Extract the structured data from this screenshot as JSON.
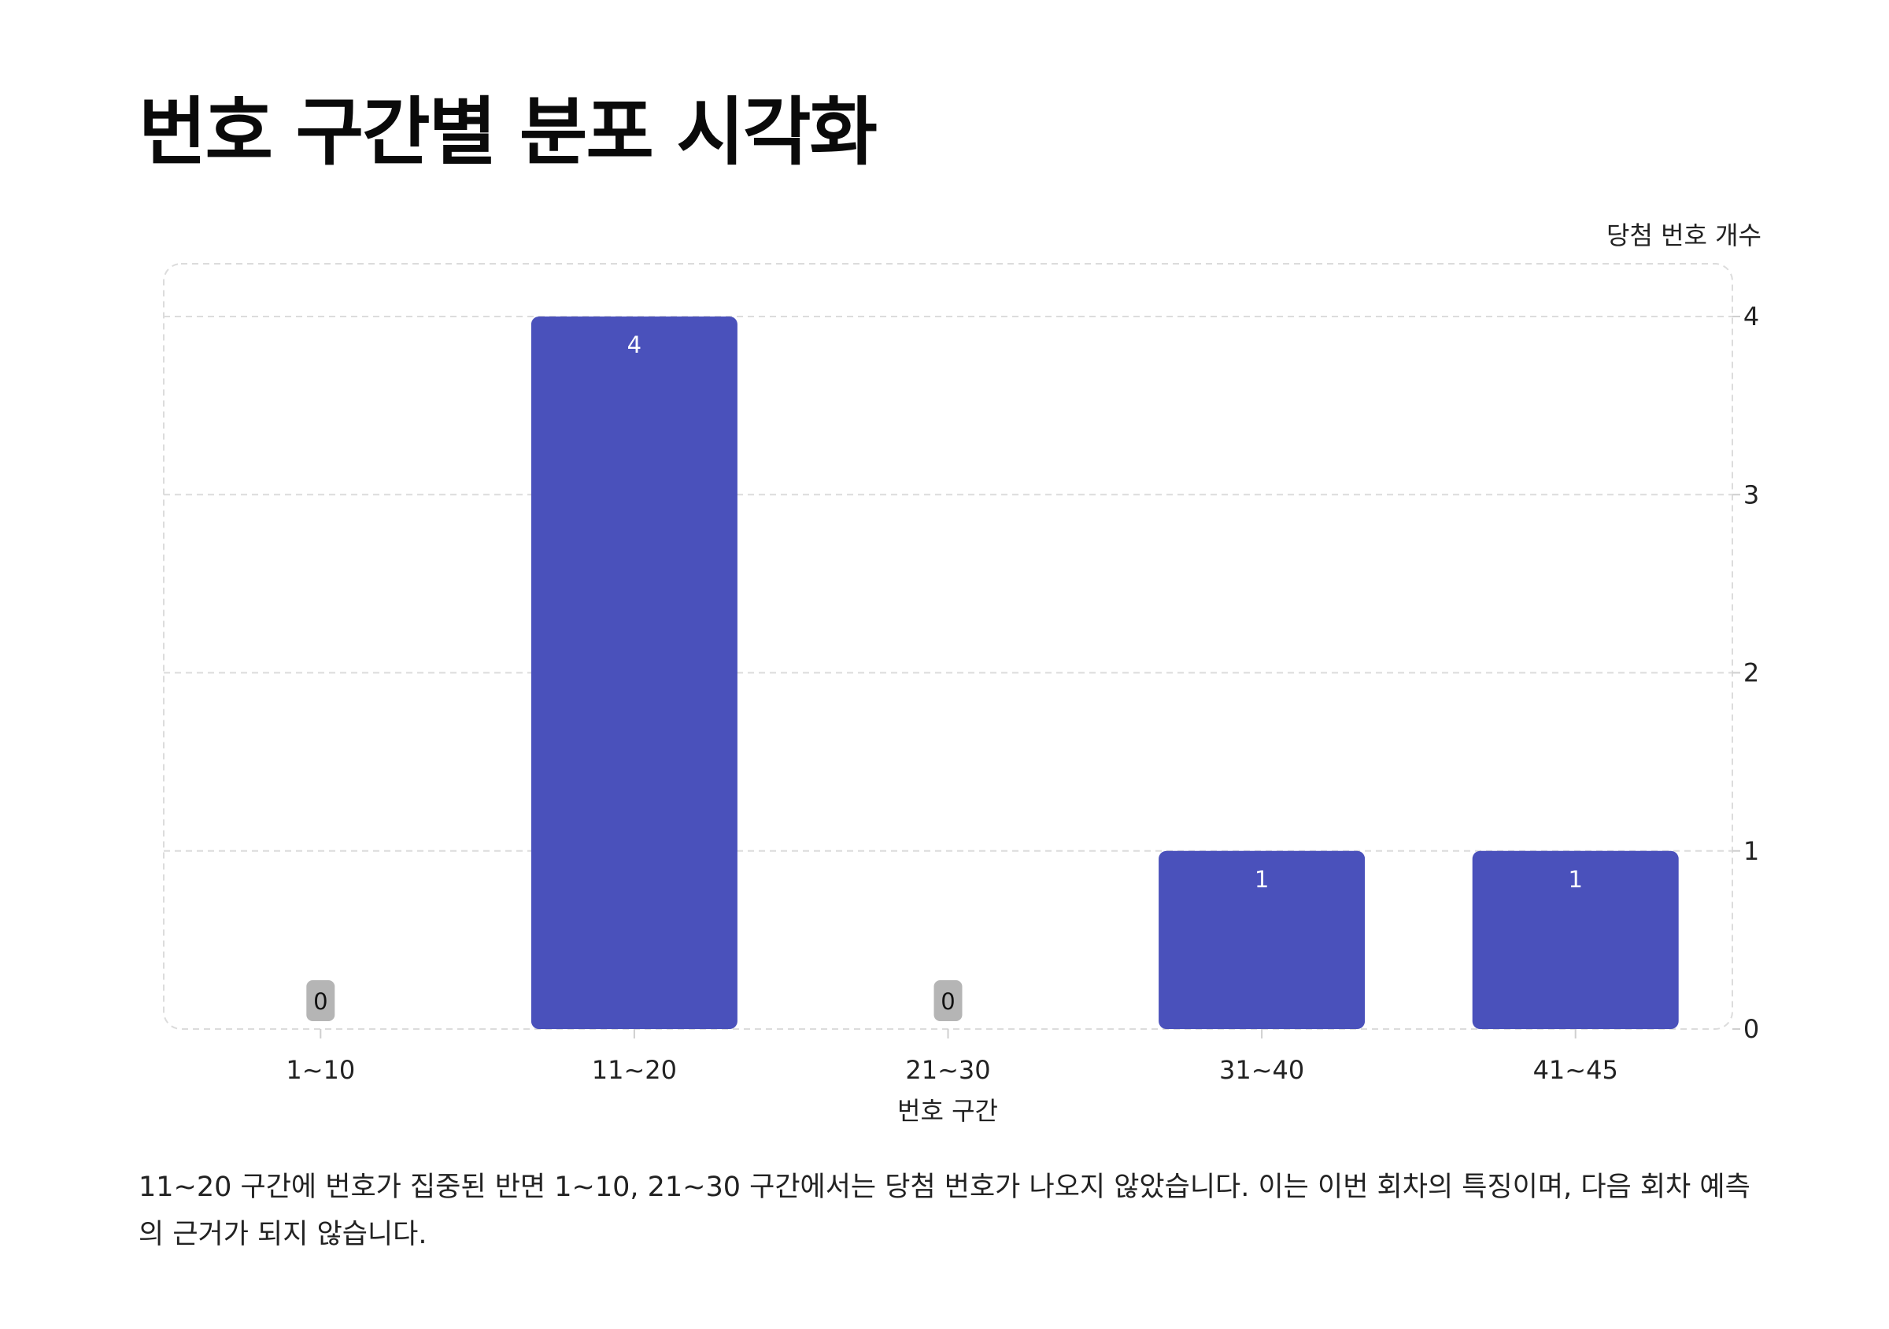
{
  "title": "번호 구간별 분포 시각화",
  "caption": "11~20 구간에 번호가 집중된 반면 1~10, 21~30 구간에서는 당첨 번호가 나오지 않았습니다. 이는 이번 회차의 특징이며, 다음 회차 예측의 근거가 되지 않습니다.",
  "colors": {
    "bar": "#4a51bb",
    "zero_badge": "#b5b5b5",
    "grid": "#dcdcdc"
  },
  "chart_data": {
    "type": "bar",
    "categories": [
      "1~10",
      "11~20",
      "21~30",
      "31~40",
      "41~45"
    ],
    "values": [
      0,
      4,
      0,
      1,
      1
    ],
    "title": "번호 구간별 분포 시각화",
    "xlabel": "번호 구간",
    "ylabel": "당첨 번호 개수",
    "ylim": [
      0,
      4
    ],
    "yticks": [
      0,
      1,
      2,
      3,
      4
    ],
    "y_axis_side": "right",
    "grid": true,
    "data_labels": true
  }
}
